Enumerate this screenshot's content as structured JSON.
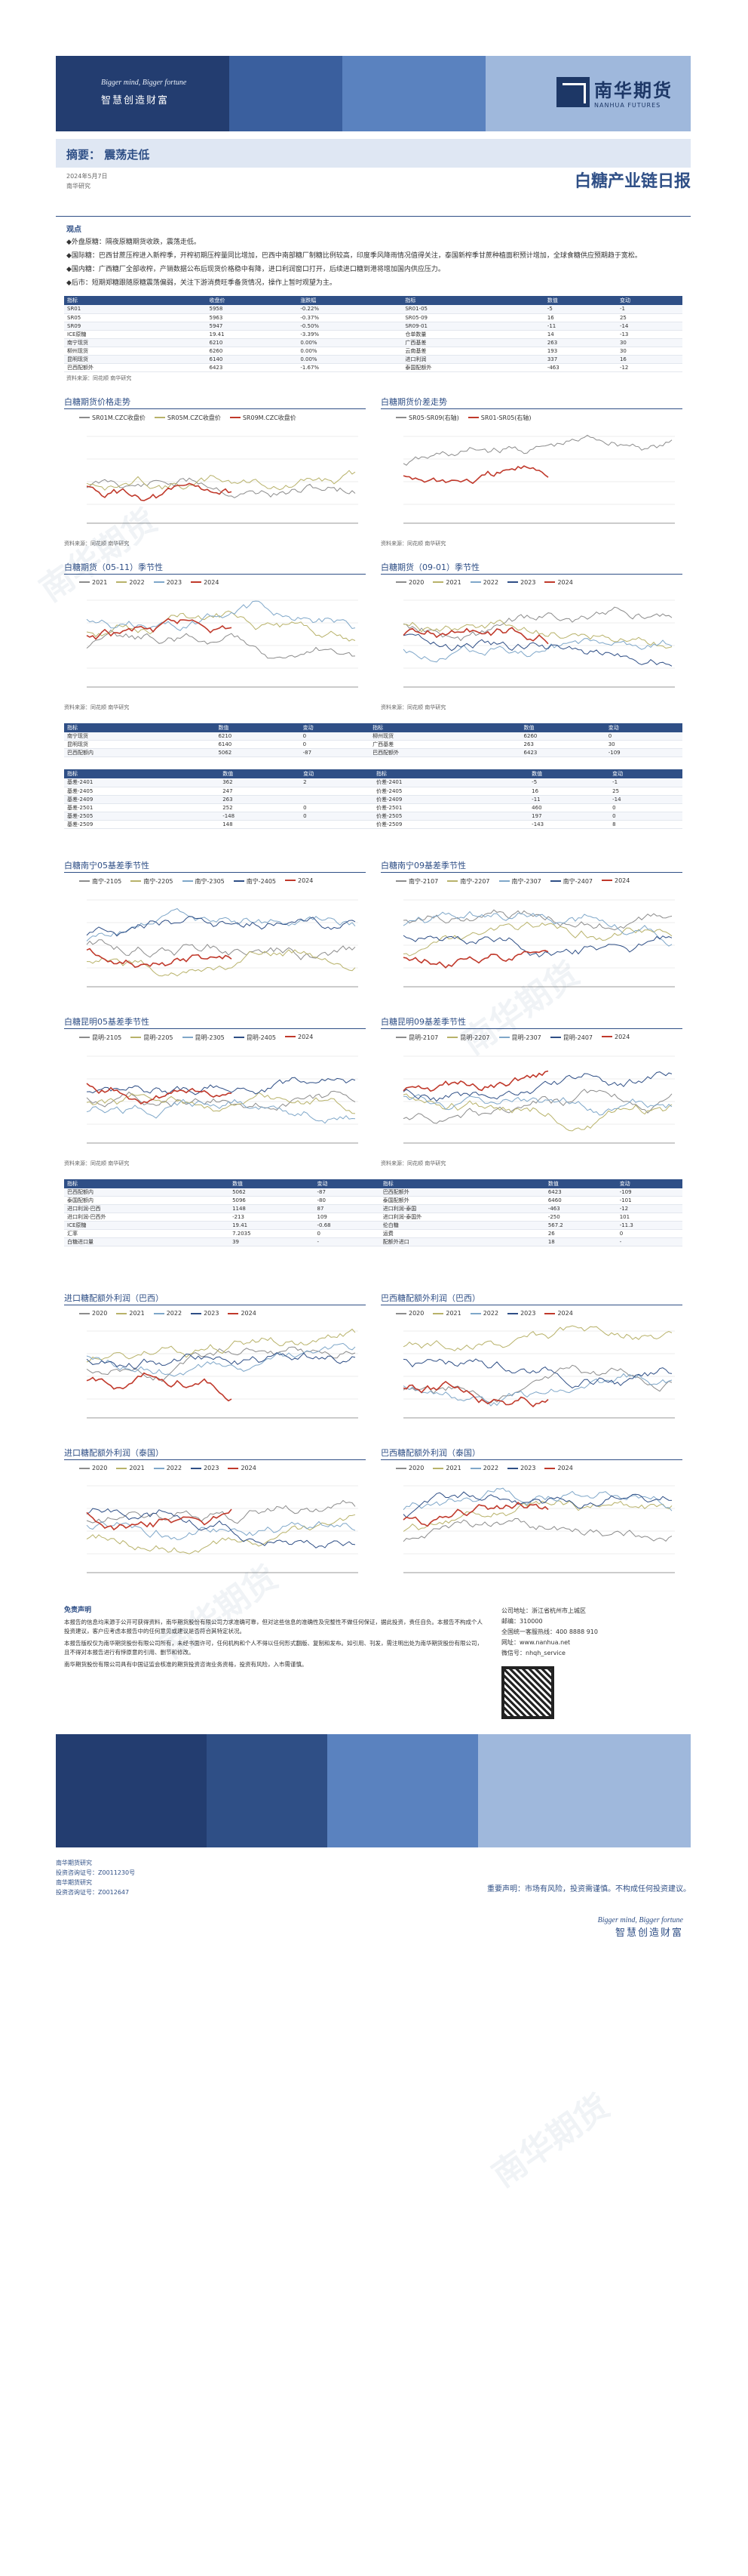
{
  "header": {
    "slogan_en": "Bigger mind, Bigger fortune",
    "slogan_cn": "智慧创造财富",
    "logo_cn": "南华期货",
    "logo_en": "NANHUA FUTURES"
  },
  "summary": {
    "label": "摘要：  震荡走低",
    "meta1": "2024年5月7日",
    "meta2": "南华研究"
  },
  "report_title": "白糖产业链日报",
  "intro": {
    "section": "观点",
    "paragraphs": [
      "◆外盘原糖：隔夜原糖期货收跌，震荡走低。",
      "◆国际糖：巴西甘蔗压榨进入新榨季，开榨初期压榨量同比增加，巴西中南部糖厂制糖比例较高，印度季风降雨情况值得关注，泰国新榨季甘蔗种植面积预计增加，全球食糖供应预期趋于宽松。",
      "◆国内糖：广西糖厂全部收榨，产销数据公布后现货价格稳中有降，进口利润窗口打开，后续进口糖到港将增加国内供应压力。",
      "◆后市：短期郑糖跟随原糖震荡偏弱，关注下游消费旺季备货情况，操作上暂时观望为主。"
    ]
  },
  "table1": {
    "headers": [
      "指标",
      "收盘价",
      "涨跌幅",
      "指标",
      "数值",
      "变动"
    ],
    "rows": [
      [
        "SR01",
        "5958",
        "-0.22%",
        "SR01-05",
        "-5",
        "-1"
      ],
      [
        "SR05",
        "5963",
        "-0.37%",
        "SR05-09",
        "16",
        "25"
      ],
      [
        "SR09",
        "5947",
        "-0.50%",
        "SR09-01",
        "-11",
        "-14"
      ],
      [
        "ICE原糖",
        "19.41",
        "-3.39%",
        "仓单数量",
        "14",
        "-13"
      ],
      [
        "南宁现货",
        "6210",
        "0.00%",
        "广西基差",
        "263",
        "30"
      ],
      [
        "柳州现货",
        "6260",
        "0.00%",
        "云南基差",
        "193",
        "30"
      ],
      [
        "昆明现货",
        "6140",
        "0.00%",
        "进口利润",
        "337",
        "16"
      ],
      [
        "巴西配额外",
        "6423",
        "-1.67%",
        "泰国配额外",
        "-463",
        "-12"
      ]
    ],
    "source": "资料来源：同花顺 南华研究"
  },
  "charts_row1": [
    {
      "title": "白糖期货价格走势",
      "legend": [
        "SR01M.CZC收盘价",
        "SR05M.CZC收盘价",
        "SR09M.CZC收盘价"
      ],
      "source": "资料来源：同花顺 南华研究"
    },
    {
      "title": "白糖期货价差走势",
      "legend": [
        "SR05-SR09(右轴)",
        "SR01-SR05(右轴)"
      ],
      "source": "资料来源：同花顺 南华研究"
    }
  ],
  "charts_row2": [
    {
      "title": "白糖期货（05-11）季节性",
      "legend": [
        "2021",
        "2022",
        "2023",
        "2024"
      ],
      "source": "资料来源：同花顺 南华研究"
    },
    {
      "title": "白糖期货（09-01）季节性",
      "legend": [
        "2020",
        "2021",
        "2022",
        "2023",
        "2024"
      ],
      "source": "资料来源：同花顺 南华研究"
    }
  ],
  "table2": {
    "headers": [
      "指标",
      "数值",
      "变动",
      "指标",
      "数值",
      "变动"
    ],
    "rows": [
      [
        "南宁现货",
        "6210",
        "0",
        "柳州现货",
        "6260",
        "0"
      ],
      [
        "昆明现货",
        "6140",
        "0",
        "广西基差",
        "263",
        "30"
      ],
      [
        "巴西配额内",
        "5062",
        "-87",
        "巴西配额外",
        "6423",
        "-109"
      ]
    ]
  },
  "table3": {
    "headers": [
      "指标",
      "数值",
      "变动",
      "指标",
      "数值",
      "变动"
    ],
    "rows": [
      [
        "基差-2401",
        "362",
        "2",
        "价差-2401",
        "-5",
        "-1"
      ],
      [
        "基差-2405",
        "247",
        "",
        "价差-2405",
        "16",
        "25"
      ],
      [
        "基差-2409",
        "263",
        "",
        "价差-2409",
        "-11",
        "-14"
      ],
      [
        "基差-2501",
        "252",
        "0",
        "价差-2501",
        "460",
        "0"
      ],
      [
        "基差-2505",
        "-148",
        "0",
        "价差-2505",
        "197",
        "0"
      ],
      [
        "基差-2509",
        "148",
        "",
        "价差-2509",
        "-143",
        "8"
      ]
    ]
  },
  "charts_row3": [
    {
      "title": "白糖南宁05基差季节性",
      "legend": [
        "南宁-2105",
        "南宁-2205",
        "南宁-2305",
        "南宁-2405",
        "2024"
      ],
      "source": ""
    },
    {
      "title": "白糖南宁09基差季节性",
      "legend": [
        "南宁-2107",
        "南宁-2207",
        "南宁-2307",
        "南宁-2407",
        "2024"
      ],
      "source": ""
    }
  ],
  "charts_row4": [
    {
      "title": "白糖昆明05基差季节性",
      "legend": [
        "昆明-2105",
        "昆明-2205",
        "昆明-2305",
        "昆明-2405",
        "2024"
      ],
      "source": "资料来源：同花顺 南华研究"
    },
    {
      "title": "白糖昆明09基差季节性",
      "legend": [
        "昆明-2107",
        "昆明-2207",
        "昆明-2307",
        "昆明-2407",
        "2024"
      ],
      "source": "资料来源：同花顺 南华研究"
    }
  ],
  "table4": {
    "headers": [
      "指标",
      "数值",
      "变动",
      "指标",
      "数值",
      "变动"
    ],
    "rows": [
      [
        "巴西配额内",
        "5062",
        "-87",
        "巴西配额外",
        "6423",
        "-109"
      ],
      [
        "泰国配额内",
        "5096",
        "-80",
        "泰国配额外",
        "6460",
        "-101"
      ],
      [
        "进口利润-巴西",
        "1148",
        "87",
        "进口利润-泰国",
        "-463",
        "-12"
      ],
      [
        "进口利润-巴西外",
        "-213",
        "109",
        "进口利润-泰国外",
        "-250",
        "101"
      ],
      [
        "ICE原糖",
        "19.41",
        "-0.68",
        "伦白糖",
        "567.2",
        "-11.3"
      ],
      [
        "汇率",
        "7.2035",
        "0",
        "运费",
        "26",
        "0"
      ],
      [
        "白糖进口量",
        "39",
        "-",
        "配额外进口",
        "18",
        "-"
      ]
    ]
  },
  "charts_row5": [
    {
      "title": "进口糖配额外利润（巴西）",
      "legend": [
        "2020",
        "2021",
        "2022",
        "2023",
        "2024"
      ],
      "source": ""
    },
    {
      "title": "巴西糖配额外利润（巴西）",
      "legend": [
        "2020",
        "2021",
        "2022",
        "2023",
        "2024"
      ],
      "source": ""
    }
  ],
  "charts_row6": [
    {
      "title": "进口糖配额外利润（泰国）",
      "legend": [
        "2020",
        "2021",
        "2022",
        "2023",
        "2024"
      ],
      "source": ""
    },
    {
      "title": "巴西糖配额外利润（泰国）",
      "legend": [
        "2020",
        "2021",
        "2022",
        "2023",
        "2024"
      ],
      "source": ""
    }
  ],
  "footer": {
    "logo_cn": "南华期货",
    "slogan_en": "Bigger mind, Bigger fortune",
    "slogan_cn": "智慧创造财富",
    "disclaimer_head": "免责声明",
    "disclaimer": [
      "本报告的信息均来源于公开可获得资料，南华期货股份有限公司力求准确可靠，但对这些信息的准确性及完整性不做任何保证，据此投资，责任自负。本报告不构成个人投资建议，客户应考虑本报告中的任何意见或建议是否符合其特定状况。",
      "本报告版权仅为南华期货股份有限公司所有，未经书面许可，任何机构和个人不得以任何形式翻版、复制和发布。如引用、刊发，需注明出处为南华期货股份有限公司，且不得对本报告进行有悖原意的引用、删节和修改。",
      "南华期货股份有限公司具有中国证监会核准的期货投资咨询业务资格，投资有风险，入市需谨慎。"
    ],
    "contact": {
      "address_label": "公司地址",
      "address": "浙江省杭州市上城区",
      "zip_label": "邮编",
      "zip": "310000",
      "phone_label": "全国统一客服热线",
      "phone": "400 8888 910",
      "web_label": "网址",
      "web": "www.nanhua.net",
      "wechat_label": "微信号",
      "wechat": "nhqh_service"
    },
    "analyst_lines": [
      "南华期货研究",
      "投资咨询证号：Z0011230号",
      "南华期货研究",
      "投资咨询证号：Z0012647"
    ],
    "closing": "重要声明：市场有风险，投资需谨慎。不构成任何投资建议。"
  }
}
